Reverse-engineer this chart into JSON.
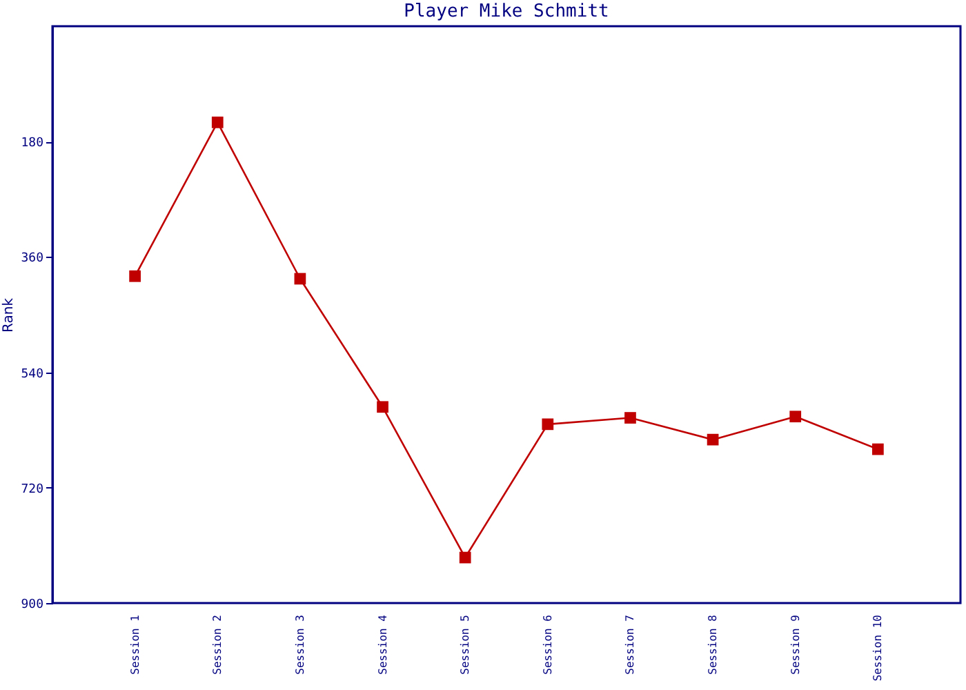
{
  "chart_data": {
    "type": "line",
    "title": "Player Mike Schmitt",
    "ylabel": "Rank",
    "categories": [
      "Session 1",
      "Session 2",
      "Session 3",
      "Session 4",
      "Session 5",
      "Session 6",
      "Session 7",
      "Session 8",
      "Session 9",
      "Session 10"
    ],
    "series": [
      {
        "color": "#c00000",
        "values": [
          390,
          150,
          394,
          594,
          829,
          621,
          611,
          645,
          609,
          660
        ]
      }
    ],
    "ylim": [
      900,
      0
    ],
    "yticks": [
      180,
      360,
      540,
      720,
      900
    ],
    "marker": "square",
    "line_style": "solid",
    "grid": false
  }
}
